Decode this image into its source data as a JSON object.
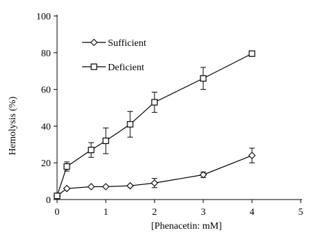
{
  "chart_data": {
    "type": "line",
    "title": "",
    "xlabel": "[Phenacetin: mM]",
    "ylabel": "Hemolysis (%)",
    "xlim": [
      0,
      5
    ],
    "ylim": [
      0,
      100
    ],
    "x_ticks": [
      0,
      1,
      2,
      3,
      4,
      5
    ],
    "y_ticks": [
      0,
      20,
      40,
      60,
      80,
      100
    ],
    "grid": false,
    "legend_position": "top-left",
    "series": [
      {
        "name": "Sufficient",
        "marker": "diamond",
        "x": [
          0,
          0.2,
          0.7,
          1,
          1.5,
          2,
          3,
          4
        ],
        "values": [
          2,
          6,
          7,
          7,
          7.5,
          9,
          13.5,
          24
        ],
        "errors": [
          0.5,
          0.5,
          0.5,
          0.5,
          0.5,
          2.5,
          1.5,
          4
        ]
      },
      {
        "name": "Deficient",
        "marker": "square",
        "x": [
          0,
          0.2,
          0.7,
          1,
          1.5,
          2,
          3,
          4
        ],
        "values": [
          2,
          18,
          27,
          32,
          41,
          53,
          66,
          79.5
        ],
        "errors": [
          0.5,
          2.5,
          4,
          7,
          7,
          5.5,
          6,
          1.5
        ]
      }
    ]
  }
}
